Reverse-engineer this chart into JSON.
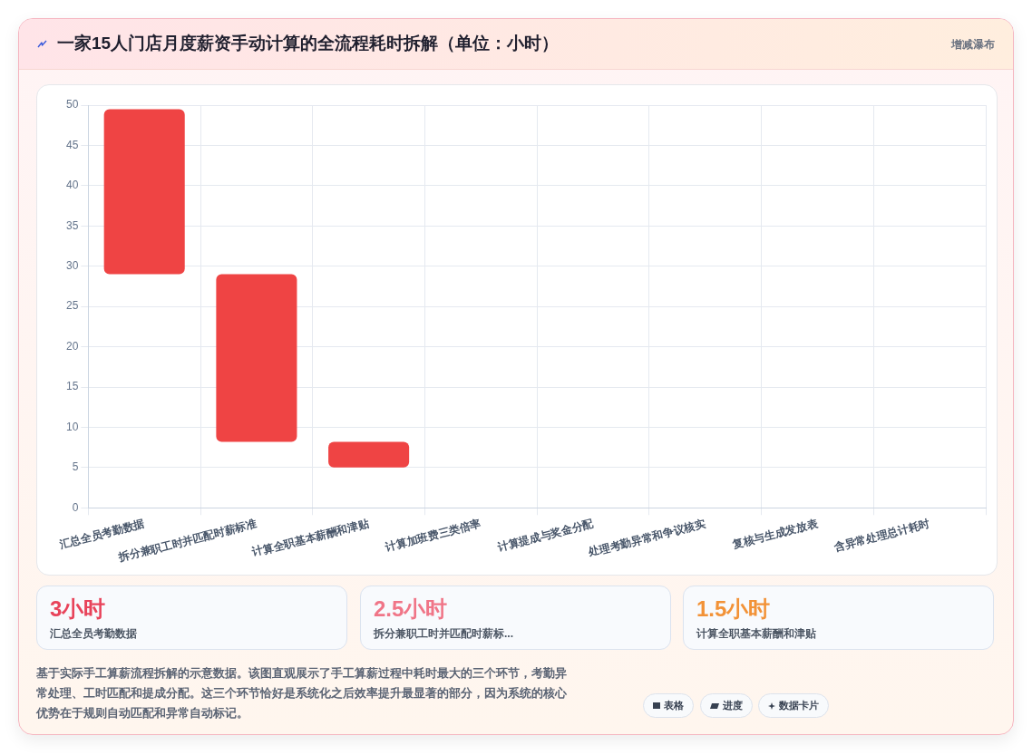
{
  "chart_data": {
    "type": "bar",
    "title": "一家15人门店月度薪资手动计算的全流程耗时拆解（单位：小时）",
    "categories": [
      "汇总全员考勤数据",
      "拆分兼职工时并匹配时薪标准",
      "计算全职基本薪酬和津贴",
      "计算加班费三类倍率",
      "计算提成与奖金分配",
      "处理考勤异常和争议核实",
      "复核与生成发放表",
      "含异常处理总计耗时"
    ],
    "values": [
      20.5,
      20.8,
      3.2,
      null,
      null,
      null,
      null,
      null
    ],
    "base": [
      29,
      8.2,
      5,
      null,
      null,
      null,
      null,
      null
    ],
    "color": "#ef4444",
    "ylim": [
      0,
      50
    ],
    "yticks": [
      0,
      5,
      10,
      15,
      20,
      25,
      30,
      35,
      40,
      45,
      50
    ],
    "grid": true,
    "annotations": [
      "增减瀑布",
      "3小时",
      "汇总全员考勤数据",
      "2.5小时",
      "拆分兼职工时并匹配时薪标...",
      "1.5小时",
      "计算全职基本薪酬和津贴",
      "基于实际手工算薪流程拆解的示意数据。该图直观展示了手工算薪过程中耗时最大的三个环节，考勤异常处理、工时匹配和提成分配。这三个环节恰好是系统化之后效率提升最显著的部分，因为系统的核心优势在于规则自动匹配和异常自动标记。",
      "表格",
      "进度",
      "数据卡片"
    ]
  }
}
